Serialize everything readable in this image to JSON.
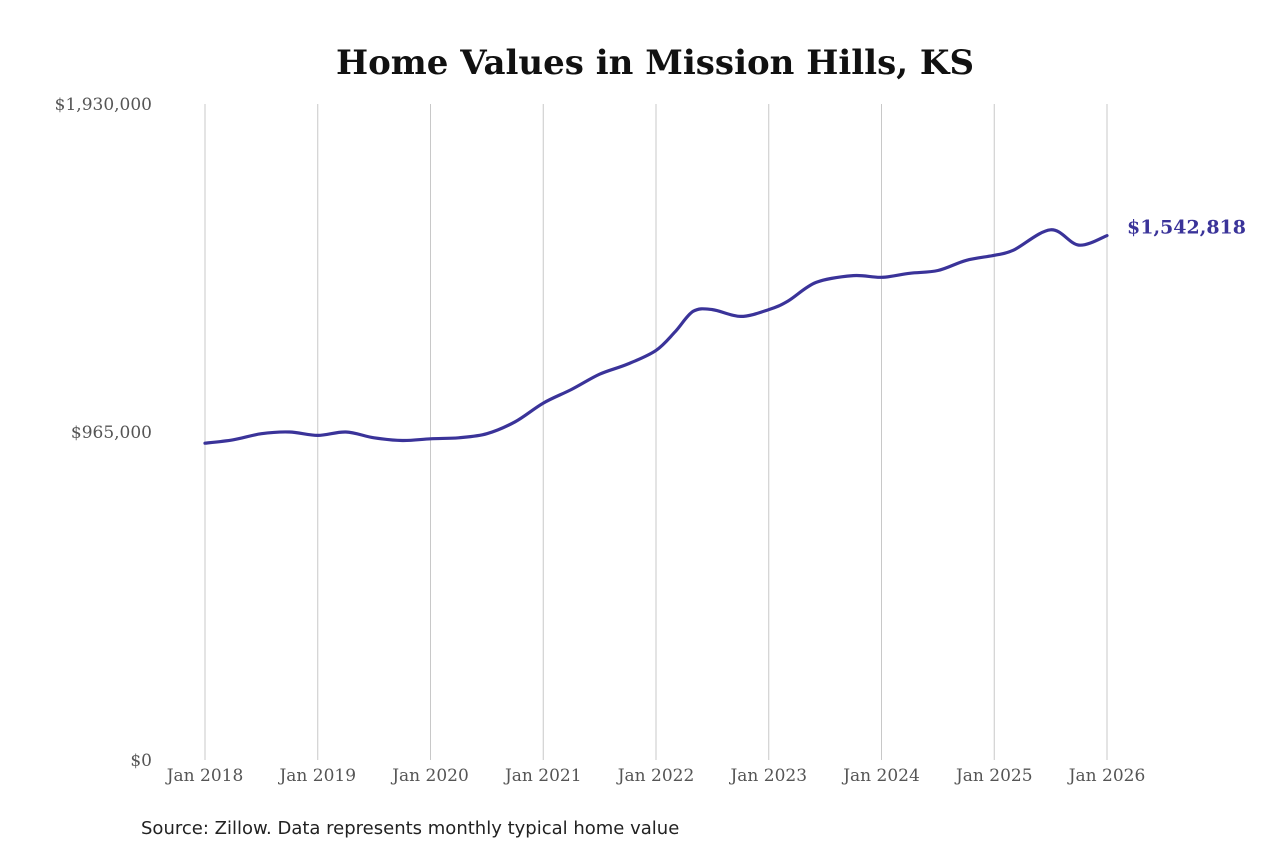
{
  "chart_data": {
    "type": "line",
    "title": "Home Values in Mission Hills, KS",
    "xlabel": "",
    "ylabel": "",
    "ylim": [
      0,
      1930000
    ],
    "y_ticks": [
      {
        "value": 0,
        "label": "$0"
      },
      {
        "value": 965000,
        "label": "$965,000"
      },
      {
        "value": 1930000,
        "label": "$1,930,000"
      }
    ],
    "x_range": [
      2018.0,
      2026.0
    ],
    "x_ticks": [
      {
        "value": 2018,
        "label": "Jan 2018"
      },
      {
        "value": 2019,
        "label": "Jan 2019"
      },
      {
        "value": 2020,
        "label": "Jan 2020"
      },
      {
        "value": 2021,
        "label": "Jan 2021"
      },
      {
        "value": 2022,
        "label": "Jan 2022"
      },
      {
        "value": 2023,
        "label": "Jan 2023"
      },
      {
        "value": 2024,
        "label": "Jan 2024"
      },
      {
        "value": 2025,
        "label": "Jan 2025"
      },
      {
        "value": 2026,
        "label": "Jan 2026"
      }
    ],
    "grid": {
      "vertical": true,
      "horizontal": false
    },
    "series": [
      {
        "color": "#3a3399",
        "x": [
          2018.0,
          2018.25,
          2018.5,
          2018.75,
          2019.0,
          2019.25,
          2019.5,
          2019.75,
          2020.0,
          2020.25,
          2020.5,
          2020.75,
          2021.0,
          2021.25,
          2021.5,
          2021.75,
          2022.0,
          2022.17,
          2022.33,
          2022.5,
          2022.75,
          2023.0,
          2023.17,
          2023.42,
          2023.75,
          2024.0,
          2024.25,
          2024.5,
          2024.75,
          2025.0,
          2025.17,
          2025.5,
          2025.75,
          2026.0
        ],
        "y": [
          932000,
          942000,
          960000,
          965000,
          955000,
          965000,
          948000,
          940000,
          945000,
          948000,
          960000,
          995000,
          1050000,
          1090000,
          1135000,
          1165000,
          1205000,
          1260000,
          1320000,
          1325000,
          1305000,
          1325000,
          1350000,
          1405000,
          1425000,
          1420000,
          1432000,
          1440000,
          1470000,
          1485000,
          1500000,
          1560000,
          1515000,
          1542818
        ],
        "end_label": "$1,542,818"
      }
    ],
    "source": "Source: Zillow. Data represents monthly typical home value"
  }
}
